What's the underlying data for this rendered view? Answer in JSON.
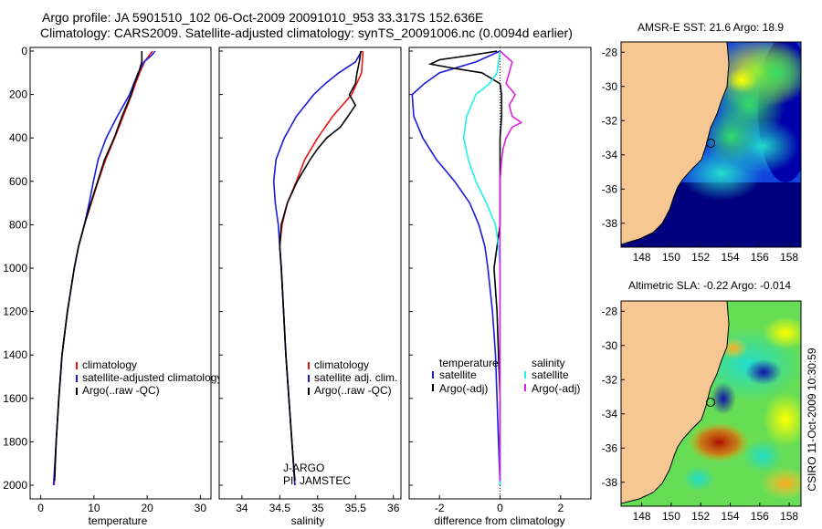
{
  "header": {
    "line1": "Argo profile: JA 5901510_102 06-Oct-2009 20091010_953 33.317S 152.636E",
    "line2": "Climatology: CARS2009. Satellite-adjusted climatology: synTS_20091006.nc (0.0094d earlier)"
  },
  "credit": "CSIRO 11-Oct-2009 10:30:59",
  "colors": {
    "red": "#ee1111",
    "blue": "#1a1ae0",
    "black": "#000000",
    "cyan": "#22eeee",
    "magenta": "#dd22dd",
    "land": "#f7c793",
    "deep": "#00007f"
  },
  "chart_data": [
    {
      "type": "line",
      "name": "temperature-panel",
      "xlabel": "temperature",
      "ylabel": "",
      "xlim": [
        -2,
        32
      ],
      "ylim": [
        2050,
        0
      ],
      "xticks": [
        0,
        10,
        20,
        30
      ],
      "yticks": [
        0,
        200,
        400,
        600,
        800,
        1000,
        1200,
        1400,
        1600,
        1800,
        2000
      ],
      "series": [
        {
          "name": "climatology",
          "color": "red",
          "depth": [
            0,
            50,
            100,
            150,
            200,
            300,
            400,
            500,
            600,
            700,
            800,
            900,
            1000,
            1200,
            1400,
            1600,
            1800,
            2000
          ],
          "values": [
            21,
            19.5,
            18.6,
            17.8,
            17.1,
            15.5,
            13.9,
            12.2,
            10.8,
            9.5,
            8.2,
            7.1,
            6.3,
            5.0,
            4.0,
            3.4,
            2.9,
            2.5
          ]
        },
        {
          "name": "satellite-adjusted climatology",
          "color": "blue",
          "depth": [
            0,
            20,
            50,
            100,
            150,
            200,
            300,
            400,
            500,
            600,
            700,
            800,
            900,
            1000,
            1200,
            1400,
            1600,
            1800,
            2000
          ],
          "values": [
            21.5,
            20.8,
            19.4,
            18.3,
            17.5,
            16.7,
            14.4,
            12.3,
            10.8,
            9.9,
            9.1,
            8.2,
            7.1,
            6.3,
            5.0,
            4.0,
            3.4,
            2.9,
            2.4
          ]
        },
        {
          "name": "Argo(..raw -QC)",
          "color": "black",
          "depth": [
            0,
            10,
            30,
            50,
            100,
            150,
            200,
            300,
            400,
            500,
            600,
            700,
            800,
            900,
            1000,
            1200,
            1400,
            1600,
            1800,
            1980
          ],
          "values": [
            19,
            19,
            19,
            19,
            18.4,
            17.6,
            17.0,
            15.3,
            13.8,
            12.0,
            10.7,
            9.4,
            8.2,
            7.1,
            6.3,
            5.0,
            4.0,
            3.4,
            2.9,
            2.6
          ]
        }
      ],
      "legend": [
        "climatology",
        "satellite-adjusted climatology",
        "Argo(..raw -QC)"
      ]
    },
    {
      "type": "line",
      "name": "salinity-panel",
      "xlabel": "salinity",
      "xlim": [
        33.7,
        36.1
      ],
      "ylim": [
        2050,
        0
      ],
      "xticks": [
        34,
        34.5,
        35,
        35.5,
        36
      ],
      "series": [
        {
          "name": "climatology",
          "color": "red",
          "depth": [
            0,
            100,
            200,
            300,
            400,
            500,
            600,
            700,
            800,
            900,
            1000,
            1200,
            1400,
            1600,
            1800,
            2000
          ],
          "values": [
            35.6,
            35.58,
            35.45,
            35.2,
            35.0,
            34.83,
            34.72,
            34.6,
            34.53,
            34.5,
            34.52,
            34.55,
            34.58,
            34.62,
            34.66,
            34.7
          ]
        },
        {
          "name": "satellite adj. clim.",
          "color": "blue",
          "depth": [
            0,
            50,
            100,
            150,
            200,
            300,
            400,
            500,
            600,
            700,
            800,
            900,
            1000,
            1200,
            1400,
            1600,
            1800,
            2000
          ],
          "values": [
            35.58,
            35.5,
            35.28,
            35.1,
            34.95,
            34.72,
            34.56,
            34.45,
            34.42,
            34.44,
            34.48,
            34.5,
            34.52,
            34.55,
            34.58,
            34.62,
            34.66,
            34.7
          ]
        },
        {
          "name": "Argo(..raw -QC)",
          "color": "black",
          "depth": [
            0,
            50,
            100,
            150,
            200,
            250,
            300,
            350,
            400,
            450,
            500,
            600,
            700,
            800,
            900,
            1000,
            1200,
            1400,
            1600,
            1800,
            1980
          ],
          "values": [
            35.57,
            35.55,
            35.52,
            35.5,
            35.42,
            35.5,
            35.4,
            35.3,
            35.12,
            35.0,
            34.9,
            34.73,
            34.6,
            34.52,
            34.5,
            34.52,
            34.55,
            34.58,
            34.62,
            34.66,
            34.7
          ]
        }
      ],
      "legend": [
        "climatology",
        "satellite adj. clim.",
        "Argo(..raw -QC)"
      ],
      "annotation": [
        "J-ARGO",
        "PI: JAMSTEC"
      ]
    },
    {
      "type": "line",
      "name": "difference-panel",
      "xlabel": "difference from climatology",
      "xlim": [
        -3,
        3
      ],
      "ylim": [
        2050,
        0
      ],
      "xticks": [
        -2,
        0,
        2
      ],
      "series": [
        {
          "name": "temperature satellite",
          "color": "blue",
          "depth": [
            0,
            50,
            100,
            150,
            200,
            300,
            400,
            500,
            600,
            700,
            800,
            900,
            1000,
            1200,
            1400,
            1600,
            1800,
            2000
          ],
          "values": [
            0,
            -0.8,
            -2.0,
            -2.5,
            -2.9,
            -2.85,
            -2.55,
            -2.1,
            -1.5,
            -1.0,
            -0.7,
            -0.5,
            -0.4,
            -0.25,
            -0.15,
            -0.1,
            -0.05,
            0
          ]
        },
        {
          "name": "temperature Argo(-adj)",
          "color": "black",
          "depth": [
            0,
            20,
            40,
            60,
            80,
            100,
            150,
            200,
            300,
            400,
            500,
            600,
            700,
            800,
            900,
            1000,
            1200,
            1400,
            1600,
            1800,
            1980
          ],
          "values": [
            -0.1,
            -1.0,
            -2.0,
            -2.3,
            -1.5,
            -0.6,
            0,
            0.05,
            0.05,
            0,
            0,
            0,
            0,
            0,
            -0.1,
            -0.2,
            -0.1,
            -0.05,
            0,
            0,
            0
          ]
        },
        {
          "name": "salinity satellite",
          "color": "cyan",
          "depth": [
            0,
            50,
            100,
            150,
            200,
            300,
            400,
            500,
            600,
            700,
            800,
            900,
            1000,
            1200,
            1400,
            1600,
            1800,
            2000
          ],
          "values": [
            0,
            -0.05,
            -0.1,
            -0.35,
            -0.8,
            -1.1,
            -1.2,
            -1.05,
            -0.8,
            -0.45,
            -0.15,
            -0.05,
            0,
            0,
            0,
            0,
            0,
            0
          ]
        },
        {
          "name": "salinity Argo(-adj)",
          "color": "magenta",
          "depth": [
            0,
            50,
            100,
            150,
            200,
            250,
            300,
            330,
            350,
            400,
            450,
            500,
            600,
            700,
            800,
            900,
            1000,
            1200,
            1400,
            1600,
            1800,
            1980
          ],
          "values": [
            0,
            0.4,
            0.3,
            0.2,
            0.5,
            0.3,
            0.4,
            0.7,
            0.4,
            0.2,
            0.1,
            0.05,
            0,
            0,
            0,
            0,
            0,
            0,
            0,
            0,
            0,
            0
          ]
        }
      ],
      "legend": {
        "temperature": [
          "temperature",
          "satellite",
          "Argo(-adj)"
        ],
        "salinity": [
          "salinity",
          "satellite",
          "Argo(-adj)"
        ]
      }
    },
    {
      "type": "heatmap",
      "name": "sst-map",
      "title": "AMSR-E SST: 21.6 Argo: 18.9",
      "xticks": [
        148,
        150,
        152,
        154,
        156,
        158
      ],
      "yticks": [
        -28,
        -30,
        -32,
        -34,
        -36,
        -38
      ],
      "xlim": [
        146.6,
        158.8
      ],
      "ylim": [
        -39.4,
        -27.4
      ],
      "profile_location": [
        152.636,
        -33.317
      ]
    },
    {
      "type": "heatmap",
      "name": "sla-map",
      "title": "Altimetric SLA: -0.22 Argo: -0.014",
      "xticks": [
        148,
        150,
        152,
        154,
        156,
        158
      ],
      "yticks": [
        -28,
        -30,
        -32,
        -34,
        -36,
        -38
      ],
      "xlim": [
        146.6,
        158.8
      ],
      "ylim": [
        -39.4,
        -27.4
      ],
      "profile_location": [
        152.636,
        -33.317
      ]
    }
  ]
}
